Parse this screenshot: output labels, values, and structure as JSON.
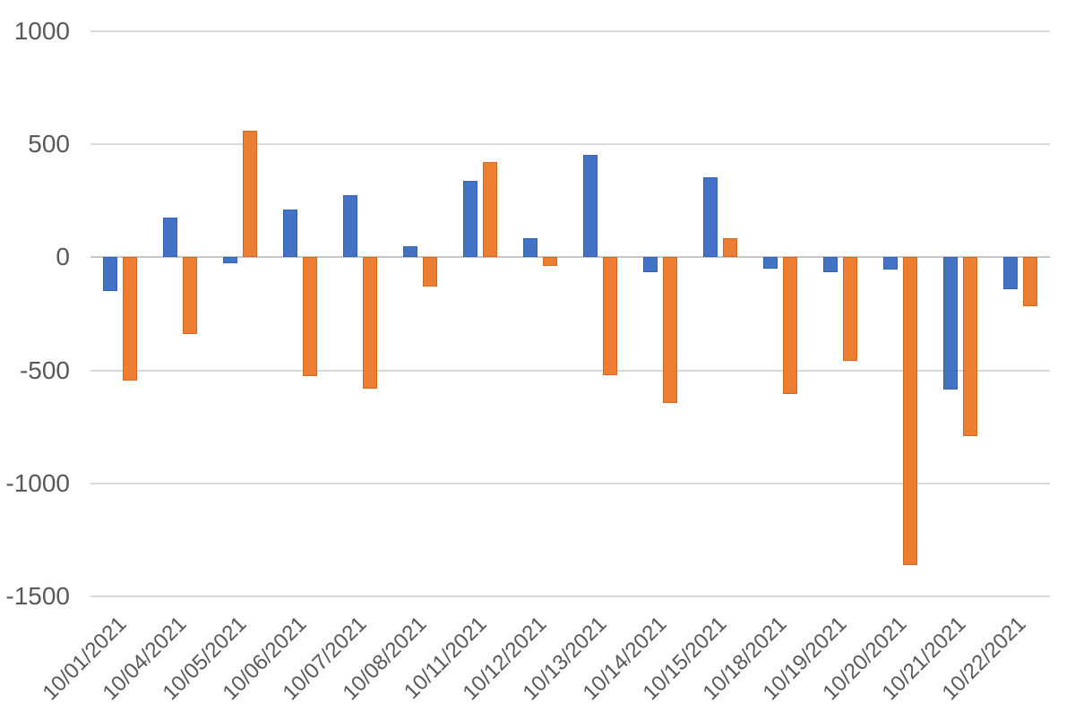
{
  "chart_data": {
    "type": "bar",
    "title": "",
    "categories": [
      "10/01/2021",
      "10/04/2021",
      "10/05/2021",
      "10/06/2021",
      "10/07/2021",
      "10/08/2021",
      "10/11/2021",
      "10/12/2021",
      "10/13/2021",
      "10/14/2021",
      "10/15/2021",
      "10/18/2021",
      "10/19/2021",
      "10/20/2021",
      "10/21/2021",
      "10/22/2021"
    ],
    "series": [
      {
        "name": "series-blue",
        "color": "#4472C4",
        "border_color": "#3563AE",
        "values": [
          -150,
          175,
          -25,
          210,
          275,
          50,
          340,
          85,
          455,
          -65,
          355,
          -50,
          -65,
          -55,
          -585,
          -140
        ]
      },
      {
        "name": "series-orange",
        "color": "#ED7D31",
        "border_color": "#D06A1F",
        "values": [
          -545,
          -340,
          560,
          -525,
          -580,
          -130,
          420,
          -40,
          -520,
          -645,
          85,
          -605,
          -460,
          -1360,
          -790,
          -215
        ]
      }
    ],
    "y_axis": {
      "ticks": [
        1000,
        500,
        0,
        -500,
        -1000,
        -1500
      ],
      "min": -1500,
      "max": 1000,
      "label_color": "#595959"
    },
    "x_axis": {
      "label_rotation_deg": -45,
      "label_color": "#595959"
    },
    "grid": {
      "show": true,
      "color": "#D9D9D9",
      "zero_line_color": "#C6C6C6"
    },
    "legend": {
      "show": false
    },
    "background": "#FFFFFF"
  }
}
